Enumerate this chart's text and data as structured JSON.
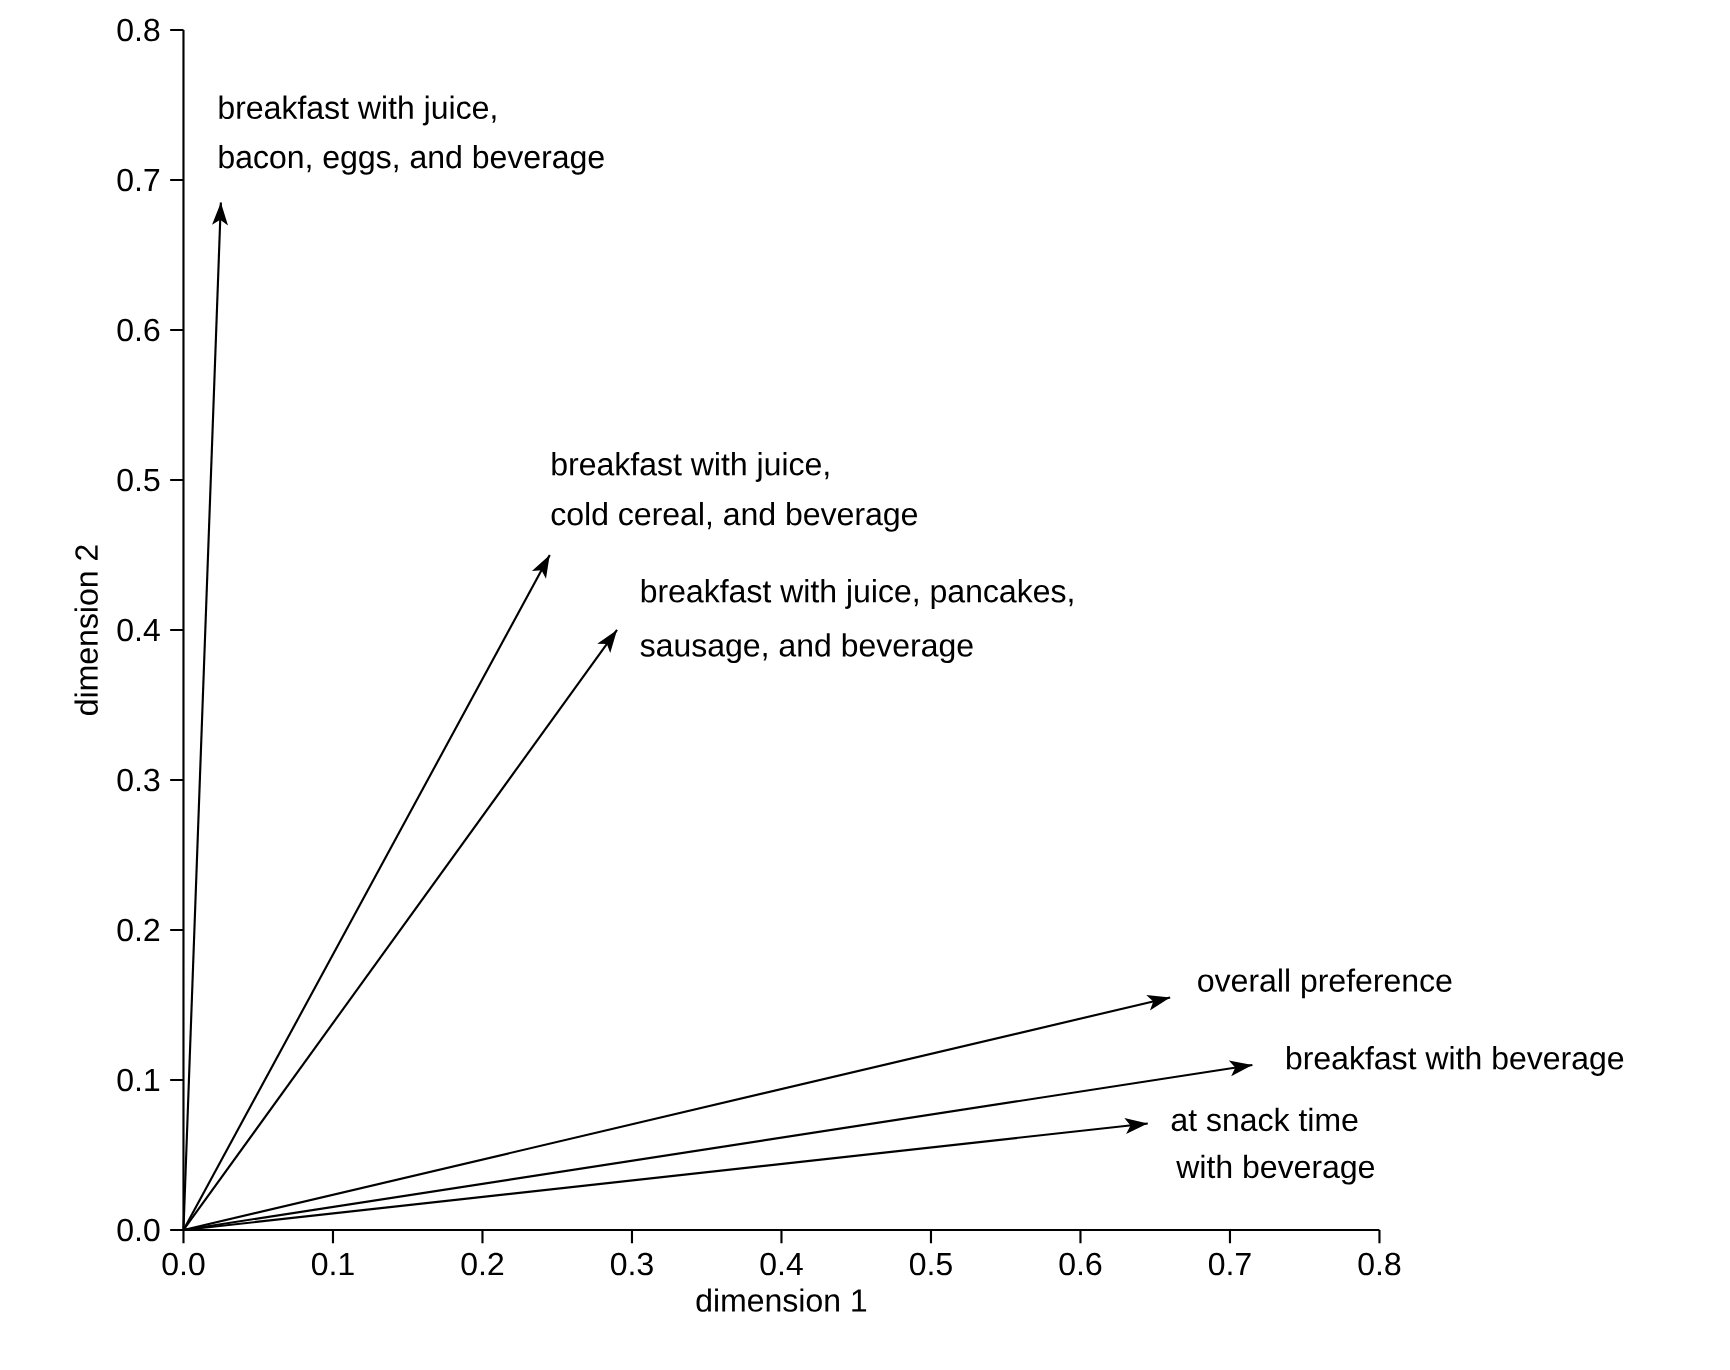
{
  "chart_data": {
    "type": "line",
    "xlabel": "dimension 1",
    "ylabel": "dimension 2",
    "xlim": [
      0,
      0.8
    ],
    "ylim": [
      0,
      0.8
    ],
    "xticks": [
      {
        "value": 0,
        "label": "0.0"
      },
      0.1,
      0.2,
      0.3,
      0.4,
      0.5,
      0.6,
      0.7,
      0.8
    ],
    "yticks": [
      {
        "value": 0,
        "label": "0.0"
      },
      0.1,
      0.2,
      0.3,
      0.4,
      0.5,
      0.6,
      0.7,
      0.8
    ],
    "series": [
      {
        "x": [
          0,
          0.025
        ],
        "values": [
          0,
          0.685
        ],
        "color": "#000000"
      },
      {
        "x": [
          0,
          0.245
        ],
        "values": [
          0,
          0.45
        ],
        "color": "#000000"
      },
      {
        "x": [
          0,
          0.29
        ],
        "values": [
          0,
          0.4
        ],
        "color": "#000000"
      },
      {
        "x": [
          0,
          0.66
        ],
        "values": [
          0,
          0.155
        ],
        "color": "#000000"
      },
      {
        "x": [
          0,
          0.715
        ],
        "values": [
          0,
          0.11
        ],
        "color": "#000000"
      },
      {
        "x": [
          0,
          0.645
        ],
        "values": [
          0,
          0.071
        ],
        "color": "#000000"
      }
    ],
    "annotations": [
      {
        "text": "breakfast with juice,",
        "x": 0.025,
        "y": 0.685
      },
      {
        "text": "bacon, eggs, and beverage",
        "x": 0.025,
        "y": 0.685
      },
      {
        "text": "breakfast with juice,",
        "x": 0.245,
        "y": 0.45
      },
      {
        "text": "cold cereal, and beverage",
        "x": 0.245,
        "y": 0.45
      },
      {
        "text": "breakfast with juice, pancakes,",
        "x": 0.29,
        "y": 0.4
      },
      {
        "text": "sausage, and beverage",
        "x": 0.29,
        "y": 0.4
      },
      {
        "text": "overall preference",
        "x": 0.66,
        "y": 0.155
      },
      {
        "text": "breakfast with beverage",
        "x": 0.715,
        "y": 0.11
      },
      {
        "text": "at snack time",
        "x": 0.645,
        "y": 0.071
      },
      {
        "text": "with beverage",
        "x": 0.645,
        "y": 0.071
      }
    ]
  }
}
